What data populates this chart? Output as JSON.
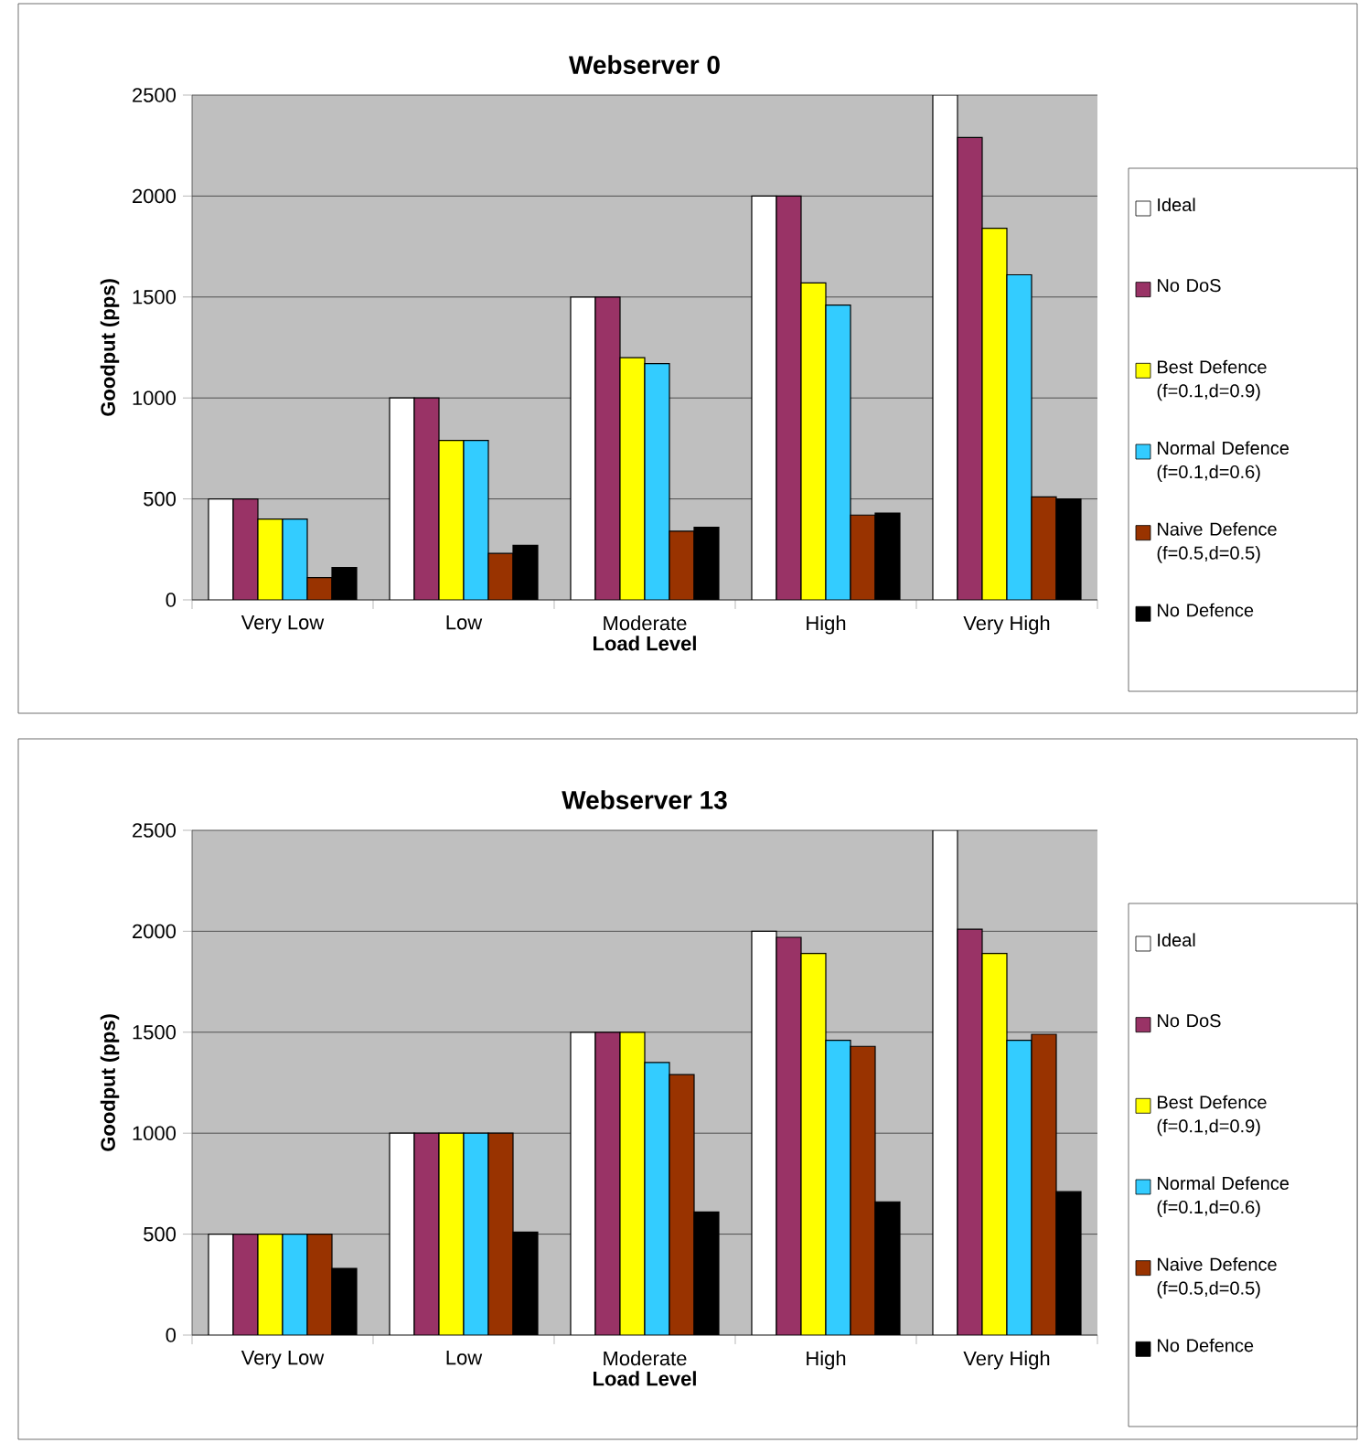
{
  "chart_data": [
    {
      "type": "bar",
      "title": "Webserver 0",
      "xlabel": "Load Level",
      "ylabel": "Goodput (pps)",
      "categories": [
        "Very Low",
        "Low",
        "Moderate",
        "High",
        "Very High"
      ],
      "series": [
        {
          "name": "Ideal",
          "color": "#ffffff",
          "values": [
            500,
            1000,
            1500,
            2000,
            2500
          ]
        },
        {
          "name": "No DoS",
          "color": "#993366",
          "values": [
            500,
            1000,
            1500,
            2000,
            2290
          ]
        },
        {
          "name": "Best Defence (f=0.1,d=0.9)",
          "color": "#ffff00",
          "values": [
            400,
            790,
            1200,
            1570,
            1840
          ]
        },
        {
          "name": "Normal Defence (f=0.1,d=0.6)",
          "color": "#33ccff",
          "values": [
            400,
            790,
            1170,
            1460,
            1610
          ]
        },
        {
          "name": "Naive Defence (f=0.5,d=0.5)",
          "color": "#993300",
          "values": [
            110,
            230,
            340,
            420,
            510
          ]
        },
        {
          "name": "No Defence",
          "color": "#000000",
          "values": [
            160,
            270,
            360,
            430,
            500
          ]
        }
      ],
      "ylim": [
        0,
        2500
      ],
      "yticks": [
        0,
        500,
        1000,
        1500,
        2000,
        2500
      ],
      "grid": "y",
      "legend": "right"
    },
    {
      "type": "bar",
      "title": "Webserver 13",
      "xlabel": "Load Level",
      "ylabel": "Goodput (pps)",
      "categories": [
        "Very Low",
        "Low",
        "Moderate",
        "High",
        "Very High"
      ],
      "series": [
        {
          "name": "Ideal",
          "color": "#ffffff",
          "values": [
            500,
            1000,
            1500,
            2000,
            2500
          ]
        },
        {
          "name": "No DoS",
          "color": "#993366",
          "values": [
            500,
            1000,
            1500,
            1970,
            2010
          ]
        },
        {
          "name": "Best Defence (f=0.1,d=0.9)",
          "color": "#ffff00",
          "values": [
            500,
            1000,
            1500,
            1890,
            1890
          ]
        },
        {
          "name": "Normal Defence (f=0.1,d=0.6)",
          "color": "#33ccff",
          "values": [
            500,
            1000,
            1350,
            1460,
            1460
          ]
        },
        {
          "name": "Naive Defence (f=0.5,d=0.5)",
          "color": "#993300",
          "values": [
            500,
            1000,
            1290,
            1430,
            1490
          ]
        },
        {
          "name": "No Defence",
          "color": "#000000",
          "values": [
            330,
            510,
            610,
            660,
            710
          ]
        }
      ],
      "ylim": [
        0,
        2500
      ],
      "yticks": [
        0,
        500,
        1000,
        1500,
        2000,
        2500
      ],
      "grid": "y",
      "legend": "right"
    }
  ]
}
